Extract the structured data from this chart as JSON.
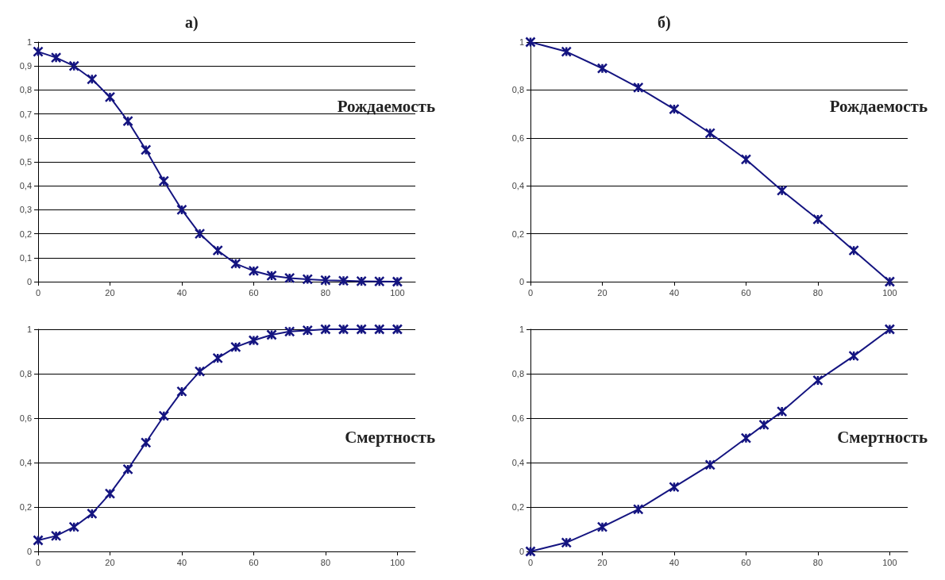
{
  "chart_data": [
    {
      "type": "line",
      "title": "а)",
      "annotations": [
        "Рождаемость"
      ],
      "x": [
        0,
        5,
        10,
        15,
        20,
        25,
        30,
        35,
        40,
        45,
        50,
        55,
        60,
        65,
        70,
        75,
        80,
        85,
        90,
        95,
        100
      ],
      "series": [
        {
          "color": "#141480",
          "values": [
            0.96,
            0.935,
            0.9,
            0.845,
            0.77,
            0.67,
            0.55,
            0.42,
            0.3,
            0.2,
            0.13,
            0.075,
            0.045,
            0.025,
            0.015,
            0.01,
            0.006,
            0.004,
            0.002,
            0.001,
            0
          ]
        }
      ],
      "xlim": [
        0,
        105
      ],
      "xticks": [
        0,
        20,
        40,
        60,
        80,
        100
      ],
      "ylim": [
        0,
        1
      ],
      "yticks": [
        {
          "value": 0,
          "label": "0"
        },
        {
          "value": 0.1,
          "label": "0,1"
        },
        {
          "value": 0.2,
          "label": "0,2"
        },
        {
          "value": 0.3,
          "label": "0,3"
        },
        {
          "value": 0.4,
          "label": "0,4"
        },
        {
          "value": 0.5,
          "label": "0,5"
        },
        {
          "value": 0.6,
          "label": "0,6"
        },
        {
          "value": 0.7,
          "label": "0,7"
        },
        {
          "value": 0.8,
          "label": "0,8"
        },
        {
          "value": 0.9,
          "label": "0,9"
        },
        {
          "value": 1,
          "label": "1"
        }
      ],
      "grid": "y",
      "marker": "cross",
      "line_style": "solid"
    },
    {
      "type": "line",
      "annotations": [
        "Смертность"
      ],
      "x": [
        0,
        5,
        10,
        15,
        20,
        25,
        30,
        35,
        40,
        45,
        50,
        55,
        60,
        65,
        70,
        75,
        80,
        85,
        90,
        95,
        100
      ],
      "series": [
        {
          "color": "#141480",
          "values": [
            0.05,
            0.07,
            0.11,
            0.17,
            0.26,
            0.37,
            0.49,
            0.61,
            0.72,
            0.81,
            0.87,
            0.92,
            0.95,
            0.975,
            0.99,
            0.995,
            1,
            1,
            1,
            1,
            1
          ]
        }
      ],
      "xlim": [
        0,
        105
      ],
      "xticks": [
        0,
        20,
        40,
        60,
        80,
        100
      ],
      "ylim": [
        0,
        1
      ],
      "yticks": [
        {
          "value": 0,
          "label": "0"
        },
        {
          "value": 0.2,
          "label": "0,2"
        },
        {
          "value": 0.4,
          "label": "0,4"
        },
        {
          "value": 0.6,
          "label": "0,6"
        },
        {
          "value": 0.8,
          "label": "0,8"
        },
        {
          "value": 1,
          "label": "1"
        }
      ],
      "grid": "y",
      "marker": "cross",
      "line_style": "solid"
    },
    {
      "type": "line",
      "title": "б)",
      "annotations": [
        "Рождаемость"
      ],
      "x": [
        0,
        10,
        20,
        30,
        40,
        50,
        60,
        70,
        80,
        90,
        100
      ],
      "series": [
        {
          "color": "#141480",
          "values": [
            1,
            0.96,
            0.89,
            0.81,
            0.72,
            0.62,
            0.51,
            0.38,
            0.26,
            0.13,
            0
          ]
        }
      ],
      "xlim": [
        0,
        105
      ],
      "xticks": [
        0,
        20,
        40,
        60,
        80,
        100
      ],
      "ylim": [
        0,
        1
      ],
      "yticks": [
        {
          "value": 0,
          "label": "0"
        },
        {
          "value": 0.2,
          "label": "0,2"
        },
        {
          "value": 0.4,
          "label": "0,4"
        },
        {
          "value": 0.6,
          "label": "0,6"
        },
        {
          "value": 0.8,
          "label": "0,8"
        },
        {
          "value": 1,
          "label": "1"
        }
      ],
      "grid": "y",
      "marker": "cross",
      "line_style": "solid"
    },
    {
      "type": "line",
      "annotations": [
        "Смертность"
      ],
      "x": [
        0,
        10,
        20,
        30,
        40,
        50,
        60,
        65,
        70,
        80,
        90,
        100
      ],
      "series": [
        {
          "color": "#141480",
          "values": [
            0,
            0.04,
            0.11,
            0.19,
            0.29,
            0.39,
            0.51,
            0.57,
            0.63,
            0.77,
            0.88,
            1
          ]
        }
      ],
      "xlim": [
        0,
        105
      ],
      "xticks": [
        0,
        20,
        40,
        60,
        80,
        100
      ],
      "ylim": [
        0,
        1
      ],
      "yticks": [
        {
          "value": 0,
          "label": "0"
        },
        {
          "value": 0.2,
          "label": "0,2"
        },
        {
          "value": 0.4,
          "label": "0,4"
        },
        {
          "value": 0.6,
          "label": "0,6"
        },
        {
          "value": 0.8,
          "label": "0,8"
        },
        {
          "value": 1,
          "label": "1"
        }
      ],
      "grid": "y",
      "marker": "cross",
      "line_style": "solid"
    }
  ]
}
